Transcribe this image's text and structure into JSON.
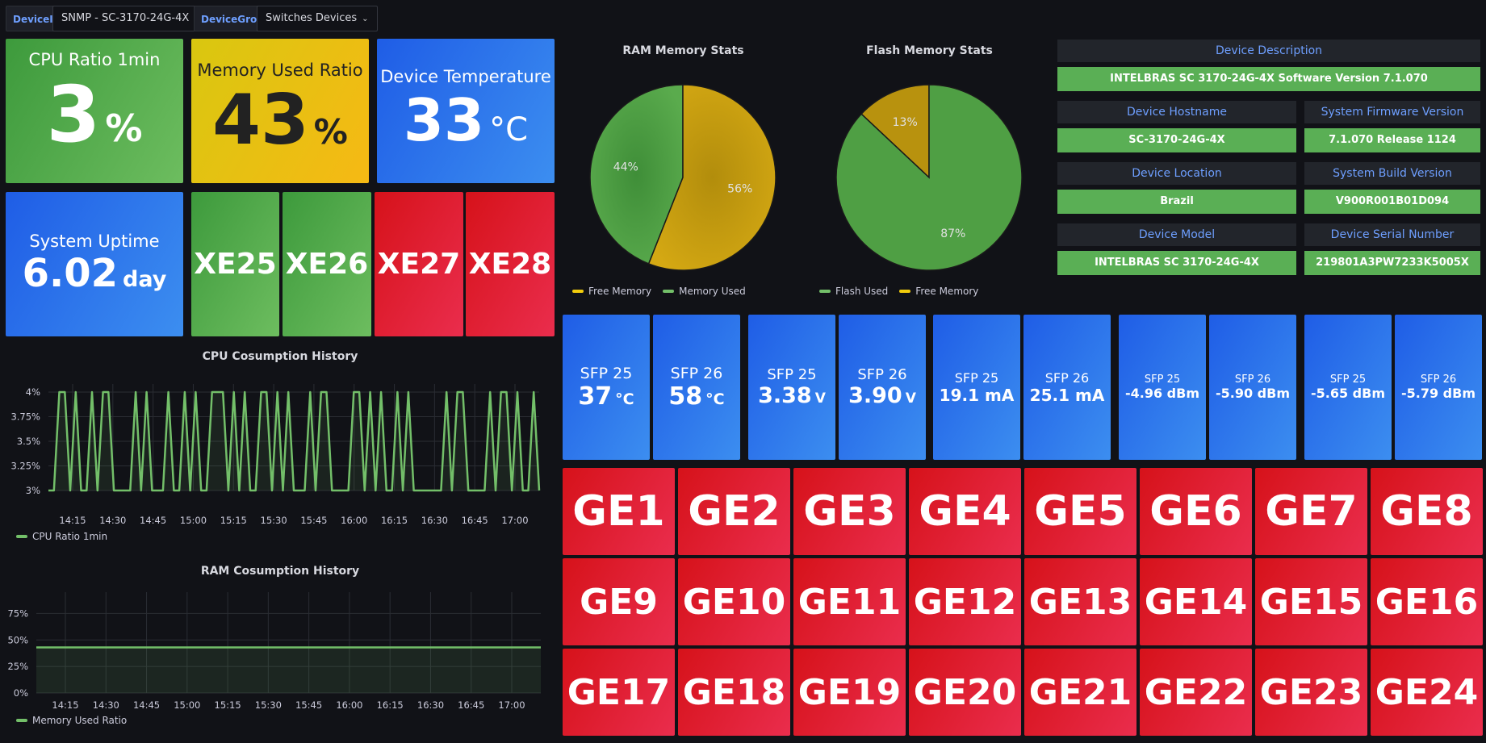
{
  "vars": {
    "device_ip_label": "DeviceIP",
    "device_ip_value": "SNMP - SC-3170-24G-4X",
    "device_group_label": "DeviceGroup",
    "device_group_value": "Switches Devices"
  },
  "stats": {
    "cpu": {
      "title": "CPU Ratio 1min",
      "value": "3",
      "unit": "%"
    },
    "memory": {
      "title": "Memory Used Ratio",
      "value": "43",
      "unit": "%"
    },
    "temperature": {
      "title": "Device Temperature",
      "value": "33",
      "unit": "°C"
    },
    "uptime": {
      "title": "System Uptime",
      "value": "6.02",
      "unit": "day"
    }
  },
  "xe_ports": [
    {
      "label": "XE25",
      "status": "up"
    },
    {
      "label": "XE26",
      "status": "up"
    },
    {
      "label": "XE27",
      "status": "down"
    },
    {
      "label": "XE28",
      "status": "down"
    }
  ],
  "ram_pie": {
    "title": "RAM Memory Stats",
    "legend": [
      "Free Memory",
      "Memory Used"
    ],
    "slices": [
      {
        "name": "Memory Used",
        "pct": 44,
        "label": "44%"
      },
      {
        "name": "Free Memory",
        "pct": 56,
        "label": "56%"
      }
    ]
  },
  "flash_pie": {
    "title": "Flash Memory Stats",
    "legend": [
      "Flash Used",
      "Free Memory"
    ],
    "slices": [
      {
        "name": "Free Memory",
        "pct": 13,
        "label": "13%"
      },
      {
        "name": "Flash Used",
        "pct": 87,
        "label": "87%"
      }
    ]
  },
  "device_info": {
    "description": {
      "label": "Device Description",
      "value": "INTELBRAS SC 3170-24G-4X Software Version 7.1.070"
    },
    "hostname": {
      "label": "Device Hostname",
      "value": "SC-3170-24G-4X"
    },
    "firmware": {
      "label": "System Firmware Version",
      "value": "7.1.070 Release 1124"
    },
    "location": {
      "label": "Device Location",
      "value": "Brazil"
    },
    "build": {
      "label": "System Build Version",
      "value": "V900R001B01D094"
    },
    "model": {
      "label": "Device Model",
      "value": "INTELBRAS SC 3170-24G-4X"
    },
    "serial": {
      "label": "Device Serial Number",
      "value": "219801A3PW7233K5005X"
    }
  },
  "sfp": [
    {
      "title": "SFP 25",
      "value": "37",
      "unit": "°C"
    },
    {
      "title": "SFP 26",
      "value": "58",
      "unit": "°C"
    },
    {
      "title": "SFP 25",
      "value": "3.38",
      "unit": "V"
    },
    {
      "title": "SFP 26",
      "value": "3.90",
      "unit": "V"
    },
    {
      "title": "SFP 25",
      "value": "19.1 mA",
      "unit": ""
    },
    {
      "title": "SFP 26",
      "value": "25.1 mA",
      "unit": ""
    },
    {
      "title": "SFP 25",
      "value": "-4.96 dBm",
      "unit": ""
    },
    {
      "title": "SFP 26",
      "value": "-5.90 dBm",
      "unit": ""
    },
    {
      "title": "SFP 25",
      "value": "-5.65 dBm",
      "unit": ""
    },
    {
      "title": "SFP 26",
      "value": "-5.79 dBm",
      "unit": ""
    }
  ],
  "ge_ports": [
    "GE1",
    "GE2",
    "GE3",
    "GE4",
    "GE5",
    "GE6",
    "GE7",
    "GE8",
    "GE9",
    "GE10",
    "GE11",
    "GE12",
    "GE13",
    "GE14",
    "GE15",
    "GE16",
    "GE17",
    "GE18",
    "GE19",
    "GE20",
    "GE21",
    "GE22",
    "GE23",
    "GE24"
  ],
  "colors": {
    "green": "#73bf69",
    "yellow": "#f2cc0c",
    "red": "#e02f44",
    "blue": "#3274d9"
  },
  "chart_data": [
    {
      "type": "line",
      "title": "CPU Cosumption History",
      "series": [
        {
          "name": "CPU Ratio 1min",
          "values": [
            3,
            3,
            4,
            4,
            3,
            4,
            3,
            3,
            4,
            3,
            4,
            4,
            3,
            3,
            3,
            3,
            4,
            3,
            4,
            3,
            3,
            3,
            4,
            3,
            3,
            4,
            3,
            4,
            3,
            3,
            4,
            4,
            4,
            3,
            4,
            3,
            4,
            3,
            3,
            4,
            4,
            3,
            4,
            3,
            4,
            3,
            3,
            3,
            4,
            3,
            4,
            4,
            3,
            3,
            3,
            3,
            4,
            4,
            3,
            4,
            3,
            4,
            3,
            3,
            4,
            3,
            4,
            3,
            3,
            3,
            3,
            3,
            3,
            4,
            3,
            4,
            4,
            3,
            3,
            3,
            3,
            4,
            3,
            4,
            4,
            3,
            4,
            3,
            3,
            4,
            3
          ]
        }
      ],
      "x_ticks": [
        "14:15",
        "14:30",
        "14:45",
        "15:00",
        "15:15",
        "15:30",
        "15:45",
        "16:00",
        "16:15",
        "16:30",
        "16:45",
        "17:00"
      ],
      "y_ticks": [
        "4%",
        "3.75%",
        "3.5%",
        "3.25%",
        "3%"
      ],
      "ylim": [
        3,
        4
      ],
      "grid": true,
      "legend_placement": "bottom-left"
    },
    {
      "type": "area",
      "title": "RAM Cosumption History",
      "series": [
        {
          "name": "Memory Used Ratio",
          "values": [
            43,
            43,
            43,
            43,
            43,
            43,
            43,
            43,
            43,
            43,
            43,
            43
          ]
        }
      ],
      "x_ticks": [
        "14:15",
        "14:30",
        "14:45",
        "15:00",
        "15:15",
        "15:30",
        "15:45",
        "16:00",
        "16:15",
        "16:30",
        "16:45",
        "17:00"
      ],
      "y_ticks": [
        "75%",
        "50%",
        "25%",
        "0%"
      ],
      "ylim": [
        0,
        87.5
      ],
      "grid": true,
      "legend_placement": "bottom-left"
    }
  ]
}
